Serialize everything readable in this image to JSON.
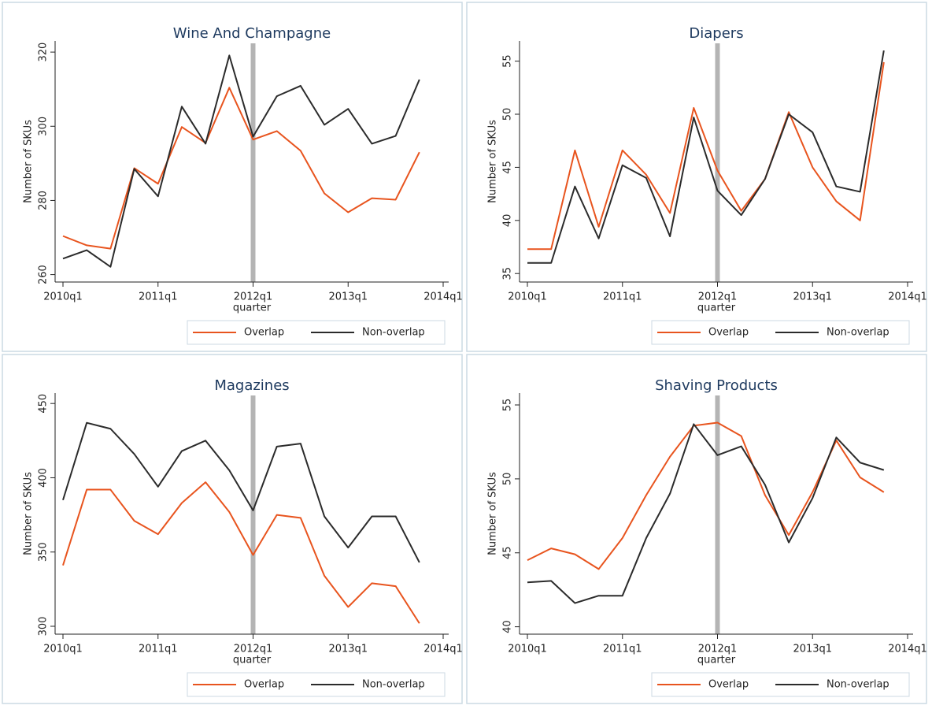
{
  "chart_data": [
    {
      "type": "line",
      "title": "Wine And Champagne",
      "x_label": "quarter",
      "y_label": "Number of SKUs",
      "x": [
        "2010q1",
        "2010q2",
        "2010q3",
        "2010q4",
        "2011q1",
        "2011q2",
        "2011q3",
        "2011q4",
        "2012q1",
        "2012q2",
        "2012q3",
        "2012q4",
        "2013q1",
        "2013q2",
        "2013q3",
        "2013q4"
      ],
      "xticks": [
        "2010q1",
        "2011q1",
        "2012q1",
        "2013q1",
        "2014q1"
      ],
      "ylim": [
        258,
        323
      ],
      "yticks": [
        260,
        280,
        300,
        320
      ],
      "reference_line": {
        "x": "2012q1",
        "color": "#b4b4b4"
      },
      "legend": "bottom",
      "series": [
        {
          "name": "Overlap",
          "color": "#e8541e",
          "values": [
            270.4,
            267.9,
            267.0,
            288.7,
            284.5,
            299.8,
            295.5,
            310.4,
            296.4,
            298.7,
            293.4,
            281.9,
            276.8,
            280.6,
            280.2,
            293.0
          ]
        },
        {
          "name": "Non-overlap",
          "color": "#2b2b2b",
          "values": [
            264.3,
            266.6,
            262.1,
            288.5,
            281.1,
            305.3,
            295.3,
            319.1,
            297.2,
            308.1,
            310.9,
            300.4,
            304.7,
            295.3,
            297.4,
            312.6
          ]
        }
      ]
    },
    {
      "type": "line",
      "title": "Diapers",
      "x_label": "quarter",
      "y_label": "Number of SKUs",
      "x": [
        "2010q1",
        "2010q2",
        "2010q3",
        "2010q4",
        "2011q1",
        "2011q2",
        "2011q3",
        "2011q4",
        "2012q1",
        "2012q2",
        "2012q3",
        "2012q4",
        "2013q1",
        "2013q2",
        "2013q3",
        "2013q4"
      ],
      "xticks": [
        "2010q1",
        "2011q1",
        "2012q1",
        "2013q1",
        "2014q1"
      ],
      "ylim": [
        34.2,
        56.9
      ],
      "yticks": [
        35,
        40,
        45,
        50,
        55
      ],
      "reference_line": {
        "x": "2012q1",
        "color": "#b4b4b4"
      },
      "legend": "bottom",
      "series": [
        {
          "name": "Overlap",
          "color": "#e8541e",
          "values": [
            37.3,
            37.3,
            46.6,
            39.4,
            46.6,
            44.3,
            40.7,
            50.6,
            44.7,
            40.9,
            43.9,
            50.2,
            45.0,
            41.8,
            40.0,
            54.9
          ]
        },
        {
          "name": "Non-overlap",
          "color": "#2b2b2b",
          "values": [
            36.0,
            36.0,
            43.2,
            38.3,
            45.2,
            44.0,
            38.5,
            49.7,
            42.8,
            40.5,
            43.9,
            50.0,
            48.3,
            43.2,
            42.7,
            56.0
          ]
        }
      ]
    },
    {
      "type": "line",
      "title": "Magazines",
      "x_label": "quarter",
      "y_label": "Number of SKUs",
      "x": [
        "2010q1",
        "2010q2",
        "2010q3",
        "2010q4",
        "2011q1",
        "2011q2",
        "2011q3",
        "2011q4",
        "2012q1",
        "2012q2",
        "2012q3",
        "2012q4",
        "2013q1",
        "2013q2",
        "2013q3",
        "2013q4"
      ],
      "xticks": [
        "2010q1",
        "2011q1",
        "2012q1",
        "2013q1",
        "2014q1"
      ],
      "ylim": [
        294.7,
        457
      ],
      "yticks": [
        300,
        350,
        400,
        450
      ],
      "reference_line": {
        "x": "2012q1",
        "color": "#b4b4b4"
      },
      "legend": "bottom",
      "series": [
        {
          "name": "Overlap",
          "color": "#e8541e",
          "values": [
            341,
            392,
            392,
            371,
            362,
            383,
            397,
            377,
            348,
            375,
            373,
            334,
            313,
            329,
            327,
            302
          ]
        },
        {
          "name": "Non-overlap",
          "color": "#2b2b2b",
          "values": [
            385,
            437,
            433,
            416,
            394,
            418,
            425,
            405,
            378,
            421,
            423,
            374,
            353,
            374,
            374,
            343
          ]
        }
      ]
    },
    {
      "type": "line",
      "title": "Shaving Products",
      "x_label": "quarter",
      "y_label": "Number of SKUs",
      "x": [
        "2010q1",
        "2010q2",
        "2010q3",
        "2010q4",
        "2011q1",
        "2011q2",
        "2011q3",
        "2011q4",
        "2012q1",
        "2012q2",
        "2012q3",
        "2012q4",
        "2013q1",
        "2013q2",
        "2013q3",
        "2013q4"
      ],
      "xticks": [
        "2010q1",
        "2011q1",
        "2012q1",
        "2013q1",
        "2014q1"
      ],
      "ylim": [
        39.5,
        55.8
      ],
      "yticks": [
        40,
        45,
        50,
        55
      ],
      "reference_line": {
        "x": "2012q1",
        "color": "#b4b4b4"
      },
      "legend": "bottom",
      "series": [
        {
          "name": "Overlap",
          "color": "#e8541e",
          "values": [
            44.5,
            45.3,
            44.9,
            43.9,
            46.0,
            48.9,
            51.5,
            53.6,
            53.8,
            52.9,
            48.9,
            46.2,
            49.1,
            52.6,
            50.1,
            49.1
          ]
        },
        {
          "name": "Non-overlap",
          "color": "#2b2b2b",
          "values": [
            43.0,
            43.1,
            41.6,
            42.1,
            42.1,
            46.0,
            49.0,
            53.7,
            51.6,
            52.2,
            49.6,
            45.7,
            48.7,
            52.8,
            51.1,
            50.6
          ]
        }
      ]
    }
  ]
}
